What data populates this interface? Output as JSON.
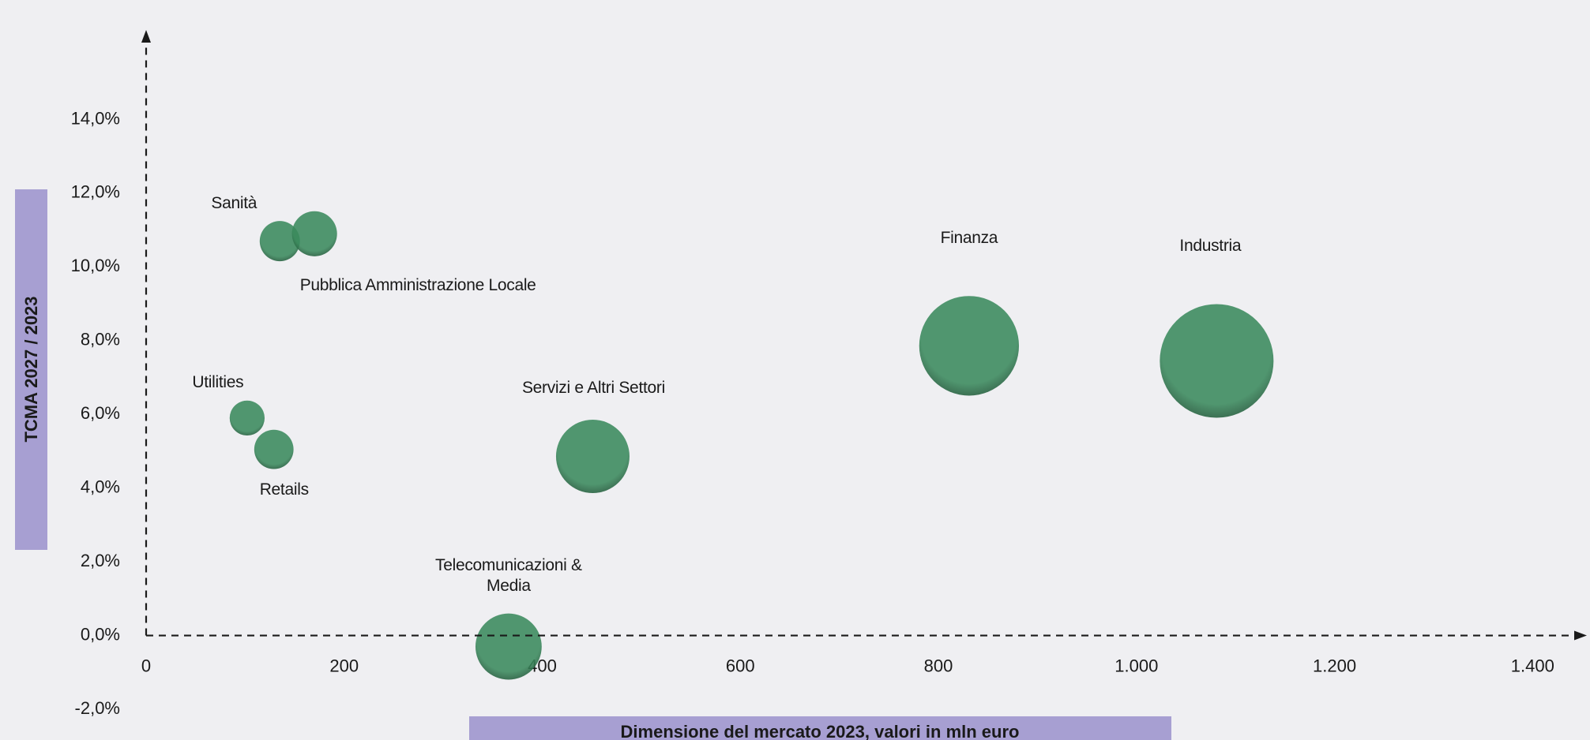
{
  "chart_data": {
    "type": "scatter",
    "xlabel": "Dimensione del mercato 2023, valori in mln euro",
    "ylabel": "TCMA 2027 / 2023",
    "color": "#3a8a5c",
    "series": [
      {
        "name": "Sanità",
        "x": [
          135
        ],
        "values": [
          10.7
        ]
      },
      {
        "name": "Pubblica Amministrazione Locale",
        "x": [
          170
        ],
        "values": [
          10.9
        ]
      },
      {
        "name": "Utilities",
        "x": [
          102
        ],
        "values": [
          5.9
        ]
      },
      {
        "name": "Retails",
        "x": [
          129
        ],
        "values": [
          5.05
        ]
      },
      {
        "name": "Servizi e Altri Settori",
        "x": [
          451
        ],
        "values": [
          4.86
        ]
      },
      {
        "name": "Telecomunicazioni & Media",
        "x": [
          366
        ],
        "values": [
          -0.3
        ]
      },
      {
        "name": "Finanza",
        "x": [
          831
        ],
        "values": [
          7.86
        ]
      },
      {
        "name": "Industria",
        "x": [
          1081
        ],
        "values": [
          7.45
        ]
      }
    ],
    "xlim": [
      0,
      1450
    ],
    "ylim": [
      -2,
      16
    ],
    "xticks": [
      0,
      200,
      400,
      600,
      800,
      {
        "value": 1000,
        "label": "1.000"
      },
      {
        "value": 1200,
        "label": "1.200"
      },
      {
        "value": 1400,
        "label": "1.400"
      }
    ],
    "yticks": [
      {
        "value": -2,
        "label": "-2,0%"
      },
      {
        "value": 0,
        "label": "0,0%"
      },
      {
        "value": 2,
        "label": "2,0%"
      },
      {
        "value": 4,
        "label": "4,0%"
      },
      {
        "value": 6,
        "label": "6,0%"
      },
      {
        "value": 8,
        "label": "8,0%"
      },
      {
        "value": 10,
        "label": "10,0%"
      },
      {
        "value": 12,
        "label": "12,0%"
      },
      {
        "value": 14,
        "label": "14,0%"
      }
    ]
  }
}
